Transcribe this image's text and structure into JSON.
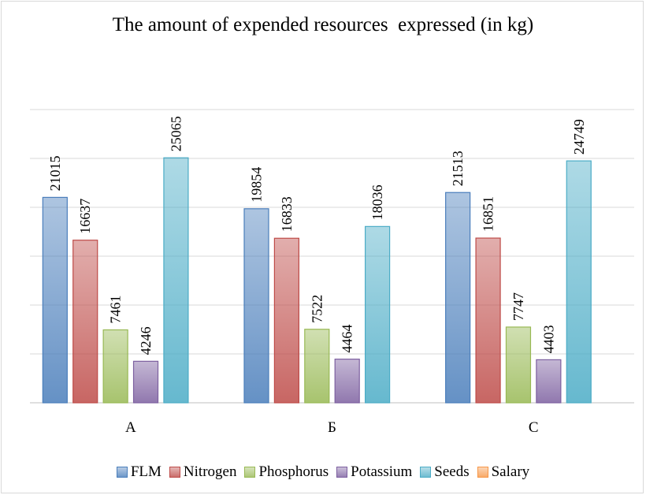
{
  "chart_data": {
    "type": "bar",
    "title": "The amount of expended resources  expressed (in kg)",
    "categories": [
      "A",
      "Б",
      "C"
    ],
    "series": [
      {
        "name": "FLM",
        "color": "#4a7ebb",
        "values": [
          21015,
          19854,
          21513
        ]
      },
      {
        "name": "Nitrogen",
        "color": "#be4b48",
        "values": [
          16637,
          16833,
          16851
        ]
      },
      {
        "name": "Phosphorus",
        "color": "#98b954",
        "values": [
          7461,
          7522,
          7747
        ]
      },
      {
        "name": "Potassium",
        "color": "#7d60a0",
        "values": [
          4246,
          4464,
          4403
        ]
      },
      {
        "name": "Seeds",
        "color": "#4bacc6",
        "values": [
          25065,
          18036,
          24749
        ]
      },
      {
        "name": "Salary",
        "color": "#f79646",
        "values": [
          null,
          null,
          null
        ]
      }
    ],
    "ylim": [
      0,
      30000
    ],
    "yticks": [
      0,
      5000,
      10000,
      15000,
      20000,
      25000,
      30000
    ],
    "grid": true,
    "legend": "bottom"
  }
}
